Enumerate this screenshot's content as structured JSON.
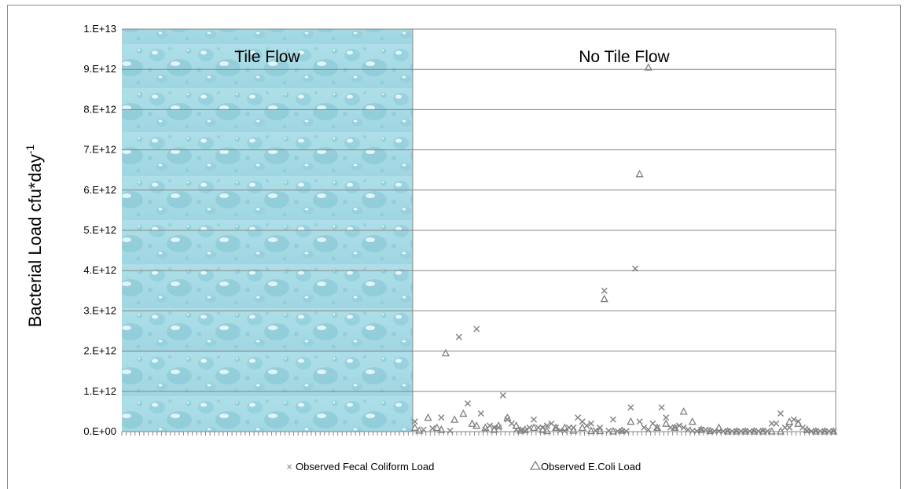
{
  "chart_data": {
    "type": "scatter",
    "title": "",
    "xlabel": "",
    "ylabel": "Bacterial Load cfu*day",
    "ylabel_superscript": "-1",
    "ylim": [
      0,
      10000000000000.0
    ],
    "yticks": [
      "0.E+00",
      "1.E+12",
      "2.E+12",
      "3.E+12",
      "4.E+12",
      "5.E+12",
      "6.E+12",
      "7.E+12",
      "8.E+12",
      "9.E+12",
      "1.E+13"
    ],
    "x_count": 162,
    "regions": [
      {
        "label": "Tile Flow",
        "x_start": 0,
        "x_end": 66,
        "fill": "water-droplets"
      },
      {
        "label": "No Tile Flow",
        "x_start": 66,
        "x_end": 162
      }
    ],
    "grid": true,
    "legend_position": "bottom",
    "series": [
      {
        "name": "Observed Fecal Coliform Load",
        "marker": "x",
        "color": "#808080",
        "x": [
          66,
          68,
          70,
          72,
          74,
          76,
          78,
          80,
          81,
          82,
          83,
          84,
          85,
          86,
          87,
          88,
          89,
          90,
          91,
          92,
          93,
          94,
          95,
          96,
          97,
          98,
          99,
          100,
          101,
          102,
          103,
          104,
          105,
          106,
          107,
          108,
          109,
          110,
          111,
          112,
          113,
          114,
          115,
          116,
          117,
          118,
          119,
          120,
          121,
          122,
          123,
          124,
          125,
          126,
          127,
          128,
          129,
          130,
          131,
          132,
          133,
          134,
          135,
          136,
          137,
          138,
          139,
          140,
          141,
          142,
          143,
          144,
          145,
          146,
          147,
          148,
          149,
          150,
          151,
          152,
          153,
          154,
          155,
          156,
          157,
          158,
          159,
          160,
          161
        ],
        "y": [
          250000000000.0,
          50000000000.0,
          80000000000.0,
          350000000000.0,
          20000000000.0,
          2350000000000.0,
          700000000000.0,
          2550000000000.0,
          450000000000.0,
          50000000000.0,
          150000000000.0,
          100000000000.0,
          100000000000.0,
          900000000000.0,
          300000000000.0,
          200000000000.0,
          50000000000.0,
          30000000000.0,
          20000000000.0,
          100000000000.0,
          300000000000.0,
          100000000000.0,
          100000000000.0,
          150000000000.0,
          200000000000.0,
          100000000000.0,
          30000000000.0,
          20000000000.0,
          100000000000.0,
          100000000000.0,
          350000000000.0,
          250000000000.0,
          150000000000.0,
          200000000000.0,
          30000000000.0,
          100000000000.0,
          3500000000000.0,
          20000000000.0,
          300000000000.0,
          10000000000.0,
          10000000000.0,
          10000000000.0,
          600000000000.0,
          4050000000000.0,
          250000000000.0,
          100000000000.0,
          50000000000.0,
          200000000000.0,
          100000000000.0,
          600000000000.0,
          350000000000.0,
          100000000000.0,
          100000000000.0,
          150000000000.0,
          100000000000.0,
          50000000000.0,
          20000000000.0,
          10000000000.0,
          50000000000.0,
          50000000000.0,
          10000000000.0,
          10000000000.0,
          10000000000.0,
          10000000000.0,
          10000000000.0,
          10000000000.0,
          10000000000.0,
          10000000000.0,
          10000000000.0,
          10000000000.0,
          10000000000.0,
          10000000000.0,
          20000000000.0,
          10000000000.0,
          200000000000.0,
          200000000000.0,
          450000000000.0,
          100000000000.0,
          100000000000.0,
          300000000000.0,
          250000000000.0,
          100000000000.0,
          20000000000.0,
          10000000000.0,
          10000000000.0,
          10000000000.0,
          10000000000.0,
          10000000000.0,
          10000000000.0
        ]
      },
      {
        "name": "Observed E.Coli Load",
        "marker": "triangle",
        "color": "#808080",
        "x": [
          66,
          67,
          69,
          71,
          72,
          73,
          75,
          77,
          79,
          80,
          82,
          84,
          85,
          87,
          89,
          90,
          91,
          93,
          95,
          96,
          98,
          100,
          102,
          104,
          106,
          108,
          109,
          111,
          113,
          115,
          117,
          119,
          121,
          123,
          125,
          127,
          129,
          131,
          133,
          135,
          137,
          139,
          141,
          143,
          145,
          147,
          149,
          151,
          153,
          155,
          157,
          159,
          161
        ],
        "y": [
          100000000000.0,
          30000000000.0,
          350000000000.0,
          100000000000.0,
          50000000000.0,
          1950000000000.0,
          300000000000.0,
          450000000000.0,
          200000000000.0,
          150000000000.0,
          100000000000.0,
          50000000000.0,
          150000000000.0,
          350000000000.0,
          150000000000.0,
          30000000000.0,
          50000000000.0,
          100000000000.0,
          50000000000.0,
          20000000000.0,
          100000000000.0,
          100000000000.0,
          30000000000.0,
          100000000000.0,
          20000000000.0,
          20000000000.0,
          3300000000000.0,
          10000000000.0,
          30000000000.0,
          250000000000.0,
          6400000000000.0,
          9050000000000.0,
          100000000000.0,
          200000000000.0,
          100000000000.0,
          500000000000.0,
          250000000000.0,
          50000000000.0,
          20000000000.0,
          100000000000.0,
          10000000000.0,
          10000000000.0,
          10000000000.0,
          10000000000.0,
          10000000000.0,
          10000000000.0,
          10000000000.0,
          250000000000.0,
          200000000000.0,
          50000000000.0,
          10000000000.0,
          10000000000.0,
          10000000000.0
        ]
      }
    ]
  }
}
